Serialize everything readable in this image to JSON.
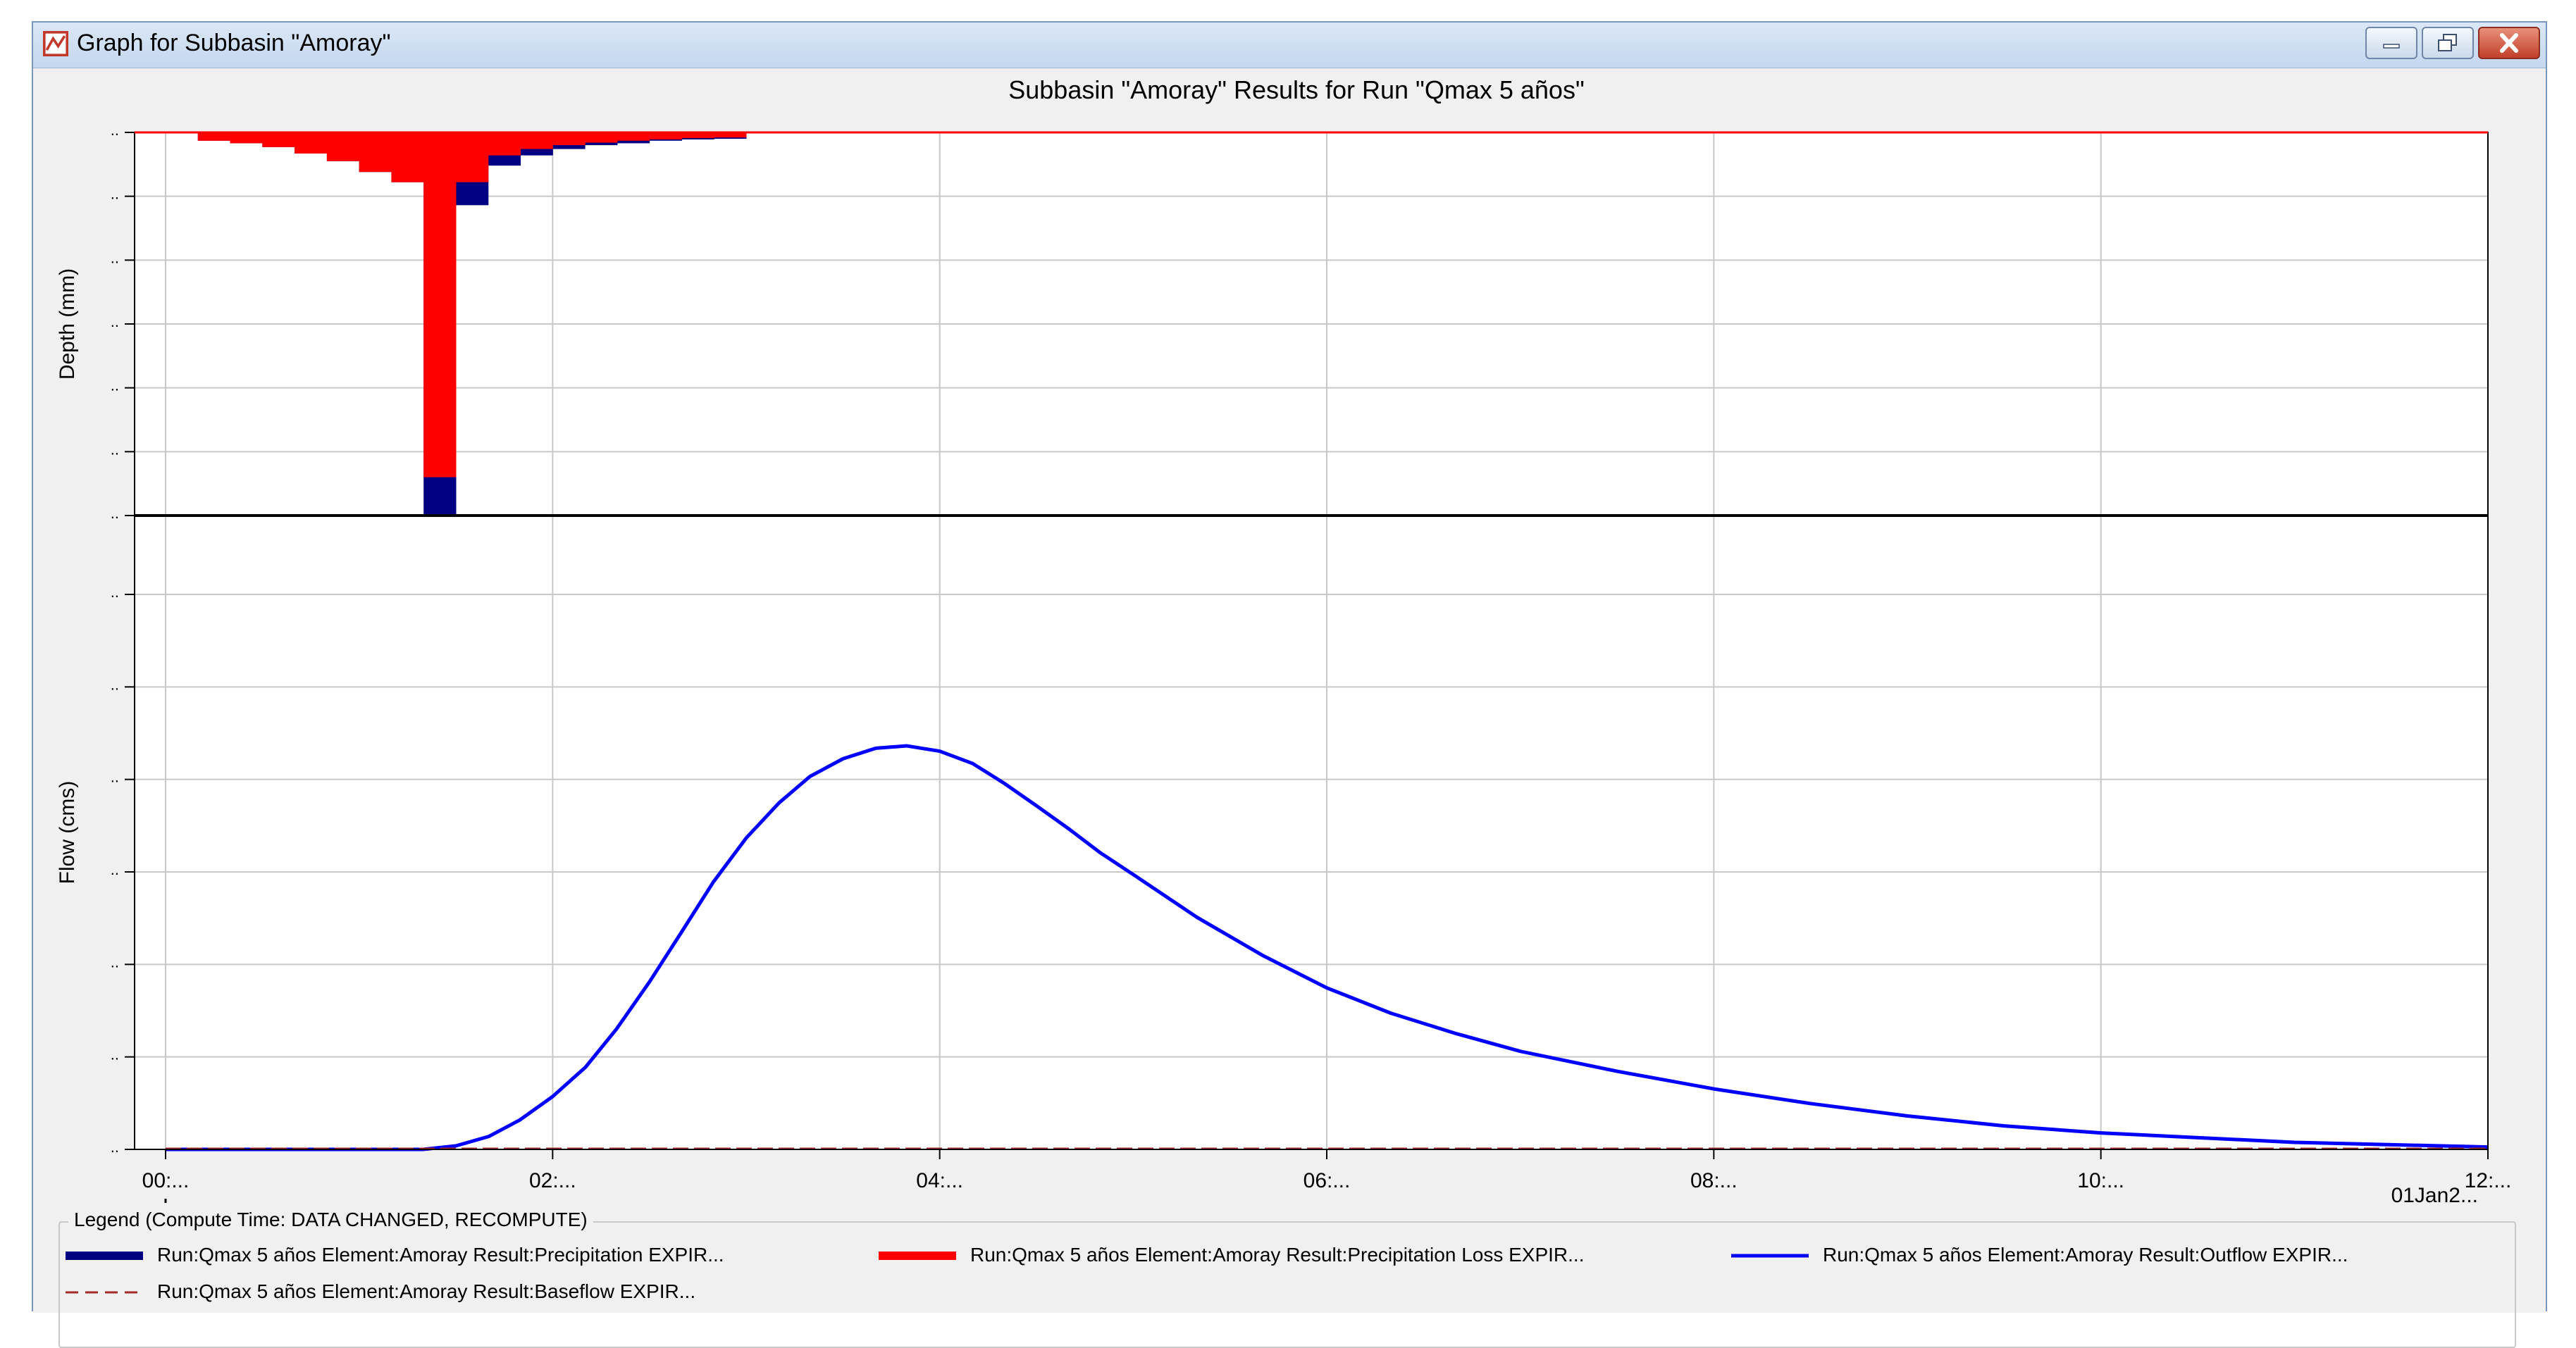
{
  "window": {
    "title": "Graph for Subbasin \"Amoray\""
  },
  "icons": {
    "app": "graph-icon",
    "minimize": "minimize-icon",
    "maximize": "restore-icon",
    "close": "close-icon"
  },
  "colors": {
    "precipitation": "#000080",
    "loss": "#ff0000",
    "outflow": "#0000ff",
    "baseflow": "#a52a2a",
    "grid": "#c8c8c8"
  },
  "chart_data": {
    "type": "line",
    "title": "Subbasin \"Amoray\" Results for Run \"Qmax 5 años\"",
    "date_label": "01Jan2...",
    "x_ticks": [
      "00:...",
      "02:...",
      "04:...",
      "06:...",
      "08:...",
      "10:...",
      "12:..."
    ],
    "x_range_hours": [
      0,
      12
    ],
    "top_panel": {
      "ylabel": "Depth (mm)",
      "inverted": true,
      "y_tick_labels": [
        "..",
        "..",
        "..",
        "..",
        "..",
        "..",
        ".."
      ],
      "y_range": [
        0,
        6
      ],
      "interval_hours": 0.1667,
      "series": [
        {
          "name": "Run:Qmax 5 años Element:Amoray Result:Precipitation EXPIR...",
          "type": "bar",
          "start_hours": [
            0.1667,
            0.3333,
            0.5,
            0.6667,
            0.8333,
            1.0,
            1.1667,
            1.3333,
            1.5,
            1.6667,
            1.8333,
            2.0,
            2.1667,
            2.3333,
            2.5,
            2.6667,
            2.8333
          ],
          "values": [
            0.13,
            0.17,
            0.23,
            0.33,
            0.45,
            0.62,
            0.78,
            6.0,
            1.14,
            0.52,
            0.36,
            0.26,
            0.2,
            0.17,
            0.13,
            0.11,
            0.1
          ]
        },
        {
          "name": "Run:Qmax 5 años Element:Amoray Result:Precipitation Loss EXPIR...",
          "type": "bar",
          "start_hours": [
            0.1667,
            0.3333,
            0.5,
            0.6667,
            0.8333,
            1.0,
            1.1667,
            1.3333,
            1.5,
            1.6667,
            1.8333,
            2.0,
            2.1667,
            2.3333,
            2.5,
            2.6667,
            2.8333
          ],
          "values": [
            0.13,
            0.17,
            0.23,
            0.33,
            0.45,
            0.62,
            0.78,
            5.4,
            0.78,
            0.36,
            0.26,
            0.2,
            0.16,
            0.13,
            0.11,
            0.09,
            0.08
          ]
        }
      ]
    },
    "bottom_panel": {
      "ylabel": "Flow (cms)",
      "y_tick_labels": [
        "..",
        "..",
        "..",
        "..",
        "..",
        "..",
        ".."
      ],
      "y_range": [
        0,
        1
      ],
      "series": [
        {
          "name": "Run:Qmax 5 años Element:Amoray Result:Outflow EXPIR...",
          "type": "line",
          "x": [
            0,
            0.5,
            1.0,
            1.33,
            1.5,
            1.67,
            1.83,
            2.0,
            2.17,
            2.33,
            2.5,
            2.67,
            2.83,
            3.0,
            3.17,
            3.33,
            3.5,
            3.67,
            3.83,
            4.0,
            4.17,
            4.33,
            4.5,
            4.67,
            4.83,
            5.0,
            5.33,
            5.67,
            6.0,
            6.33,
            6.67,
            7.0,
            7.5,
            8.0,
            8.5,
            9.0,
            9.5,
            10.0,
            11.0,
            12.0
          ],
          "y": [
            0,
            0,
            0,
            0,
            0.006,
            0.022,
            0.05,
            0.09,
            0.14,
            0.205,
            0.285,
            0.372,
            0.455,
            0.53,
            0.59,
            0.635,
            0.665,
            0.683,
            0.687,
            0.678,
            0.657,
            0.624,
            0.585,
            0.545,
            0.505,
            0.468,
            0.395,
            0.33,
            0.275,
            0.232,
            0.197,
            0.167,
            0.133,
            0.103,
            0.078,
            0.057,
            0.04,
            0.028,
            0.012,
            0.004
          ]
        },
        {
          "name": "Run:Qmax 5 años Element:Amoray Result:Baseflow EXPIR...",
          "type": "line",
          "x": [
            0,
            12
          ],
          "y": [
            0,
            0
          ]
        }
      ]
    },
    "legend": {
      "title": "Legend (Compute Time: DATA CHANGED, RECOMPUTE)",
      "placement": "bottom"
    }
  }
}
